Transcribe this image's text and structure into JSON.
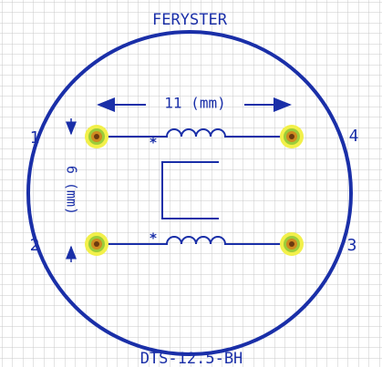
{
  "header": {
    "title": "FERYSTER"
  },
  "footer": {
    "model": "DTS-12.5-BH"
  },
  "dimensions": {
    "width": "11 (mm)",
    "height": "6 (mm)"
  },
  "pins": [
    {
      "label": "1"
    },
    {
      "label": "2"
    },
    {
      "label": "3"
    },
    {
      "label": "4"
    }
  ]
}
